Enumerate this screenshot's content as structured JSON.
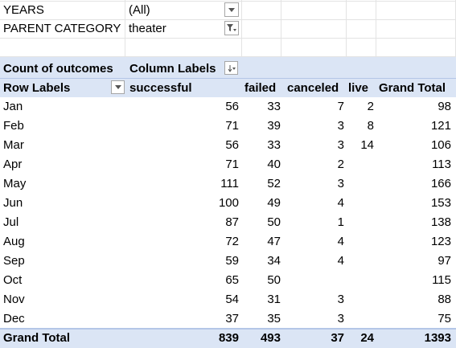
{
  "filters": [
    {
      "label": "YEARS",
      "value": "(All)",
      "icon": "dropdown-arrow-icon"
    },
    {
      "label": "PARENT CATEGORY",
      "value": "theater",
      "icon": "filter-dropdown-icon"
    }
  ],
  "pivot": {
    "corner_label": "Count of outcomes",
    "column_labels": "Column Labels",
    "row_labels": "Row Labels",
    "columns": [
      "successful",
      "failed",
      "canceled",
      "live",
      "Grand Total"
    ],
    "rows": [
      {
        "label": "Jan",
        "successful": "56",
        "failed": "33",
        "canceled": "7",
        "live": "2",
        "total": "98"
      },
      {
        "label": "Feb",
        "successful": "71",
        "failed": "39",
        "canceled": "3",
        "live": "8",
        "total": "121"
      },
      {
        "label": "Mar",
        "successful": "56",
        "failed": "33",
        "canceled": "3",
        "live": "14",
        "total": "106"
      },
      {
        "label": "Apr",
        "successful": "71",
        "failed": "40",
        "canceled": "2",
        "live": "",
        "total": "113"
      },
      {
        "label": "May",
        "successful": "111",
        "failed": "52",
        "canceled": "3",
        "live": "",
        "total": "166"
      },
      {
        "label": "Jun",
        "successful": "100",
        "failed": "49",
        "canceled": "4",
        "live": "",
        "total": "153"
      },
      {
        "label": "Jul",
        "successful": "87",
        "failed": "50",
        "canceled": "1",
        "live": "",
        "total": "138"
      },
      {
        "label": "Aug",
        "successful": "72",
        "failed": "47",
        "canceled": "4",
        "live": "",
        "total": "123"
      },
      {
        "label": "Sep",
        "successful": "59",
        "failed": "34",
        "canceled": "4",
        "live": "",
        "total": "97"
      },
      {
        "label": "Oct",
        "successful": "65",
        "failed": "50",
        "canceled": "",
        "live": "",
        "total": "115"
      },
      {
        "label": "Nov",
        "successful": "54",
        "failed": "31",
        "canceled": "3",
        "live": "",
        "total": "88"
      },
      {
        "label": "Dec",
        "successful": "37",
        "failed": "35",
        "canceled": "3",
        "live": "",
        "total": "75"
      }
    ],
    "grand_total": {
      "label": "Grand Total",
      "successful": "839",
      "failed": "493",
      "canceled": "37",
      "live": "24",
      "total": "1393"
    }
  },
  "colors": {
    "header_band": "#dbe5f5",
    "band_border": "#b4c6e7"
  }
}
